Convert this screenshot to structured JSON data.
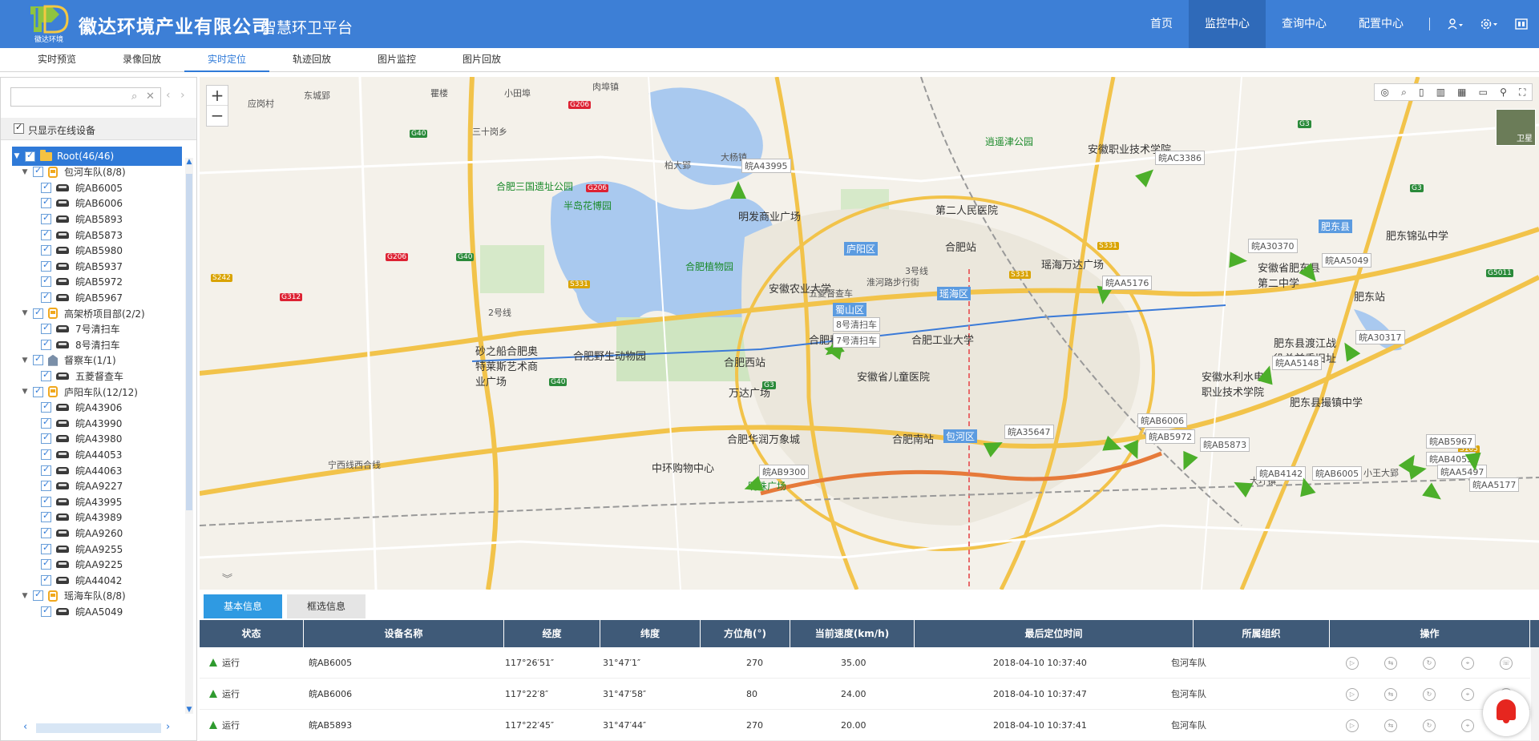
{
  "header": {
    "logo_caption": "徽达环境",
    "company": "徽达环境产业有限公司",
    "platform": "智慧环卫平台",
    "nav": [
      {
        "label": "首页",
        "active": false
      },
      {
        "label": "监控中心",
        "active": true
      },
      {
        "label": "查询中心",
        "active": false
      },
      {
        "label": "配置中心",
        "active": false
      }
    ],
    "icons": [
      "user-icon",
      "gear-icon",
      "window-icon"
    ]
  },
  "subtabs": [
    "实时预览",
    "录像回放",
    "实时定位",
    "轨迹回放",
    "图片监控",
    "图片回放"
  ],
  "subtab_active": "实时定位",
  "sidebar": {
    "search": {
      "value": "",
      "placeholder": ""
    },
    "online_only_label": "只显示在线设备",
    "tree": [
      {
        "type": "root",
        "label": "Root(46/46)"
      },
      {
        "type": "group",
        "icon": "bus",
        "label": "包河车队(8/8)"
      },
      {
        "type": "device",
        "label": "皖AB6005"
      },
      {
        "type": "device",
        "label": "皖AB6006"
      },
      {
        "type": "device",
        "label": "皖AB5893"
      },
      {
        "type": "device",
        "label": "皖AB5873"
      },
      {
        "type": "device",
        "label": "皖AB5980"
      },
      {
        "type": "device",
        "label": "皖AB5937"
      },
      {
        "type": "device",
        "label": "皖AB5972"
      },
      {
        "type": "device",
        "label": "皖AB5967"
      },
      {
        "type": "group",
        "icon": "bus",
        "label": "高架桥项目部(2/2)"
      },
      {
        "type": "device",
        "label": "7号清扫车"
      },
      {
        "type": "device",
        "label": "8号清扫车"
      },
      {
        "type": "group",
        "icon": "building",
        "label": "督察车(1/1)"
      },
      {
        "type": "device",
        "label": "五菱督查车"
      },
      {
        "type": "group",
        "icon": "bus",
        "label": "庐阳车队(12/12)"
      },
      {
        "type": "device",
        "label": "皖A43906"
      },
      {
        "type": "device",
        "label": "皖A43990"
      },
      {
        "type": "device",
        "label": "皖A43980"
      },
      {
        "type": "device",
        "label": "皖A44053"
      },
      {
        "type": "device",
        "label": "皖A44063"
      },
      {
        "type": "device",
        "label": "皖AA9227"
      },
      {
        "type": "device",
        "label": "皖A43995"
      },
      {
        "type": "device",
        "label": "皖A43989"
      },
      {
        "type": "device",
        "label": "皖AA9260"
      },
      {
        "type": "device",
        "label": "皖AA9255"
      },
      {
        "type": "device",
        "label": "皖AA9225"
      },
      {
        "type": "device",
        "label": "皖A44042"
      },
      {
        "type": "group",
        "icon": "bus",
        "label": "瑶海车队(8/8)"
      },
      {
        "type": "device",
        "label": "皖AA5049"
      }
    ]
  },
  "map": {
    "zoom_in": "+",
    "zoom_out": "−",
    "minimap_label": "卫星",
    "labels": [
      {
        "text": "应岗村",
        "cls": ""
      },
      {
        "text": "东城郢",
        "cls": ""
      },
      {
        "text": "瞿楼",
        "cls": ""
      },
      {
        "text": "小田埠",
        "cls": ""
      },
      {
        "text": "肉埠镇",
        "cls": ""
      },
      {
        "text": "合肥三国遗址公园",
        "cls": "green"
      },
      {
        "text": "半岛花博园",
        "cls": "green"
      },
      {
        "text": "明发商业广场",
        "cls": "big"
      },
      {
        "text": "第二人民医院",
        "cls": "big"
      },
      {
        "text": "逍遥津公园",
        "cls": "green"
      },
      {
        "text": "安徽职业技术学院",
        "cls": "big"
      },
      {
        "text": "合肥植物园",
        "cls": "green"
      },
      {
        "text": "庐阳区",
        "cls": "dist"
      },
      {
        "text": "合肥站",
        "cls": "big"
      },
      {
        "text": "瑶海万达广场",
        "cls": "big"
      },
      {
        "text": "安徽农业大学",
        "cls": "big"
      },
      {
        "text": "淮河路步行街",
        "cls": ""
      },
      {
        "text": "五菱督查车",
        "cls": ""
      },
      {
        "text": "蜀山区",
        "cls": "dist"
      },
      {
        "text": "瑶海区",
        "cls": "dist"
      },
      {
        "text": "合肥科技馆",
        "cls": "big"
      },
      {
        "text": "合肥工业大学",
        "cls": "big"
      },
      {
        "text": "砂之船合肥奥特莱斯艺术商业广场",
        "cls": "big"
      },
      {
        "text": "合肥野生动物园",
        "cls": "big"
      },
      {
        "text": "合肥西站",
        "cls": "big"
      },
      {
        "text": "安徽省儿童医院",
        "cls": "big"
      },
      {
        "text": "万达广场",
        "cls": "big"
      },
      {
        "text": "合肥华润万象城",
        "cls": "big"
      },
      {
        "text": "合肥南站",
        "cls": "big"
      },
      {
        "text": "包河区",
        "cls": "dist"
      },
      {
        "text": "中环购物中心",
        "cls": "big"
      },
      {
        "text": "明珠广场",
        "cls": "green"
      },
      {
        "text": "肥东县",
        "cls": "dist"
      },
      {
        "text": "肥东锦弘中学",
        "cls": "big"
      },
      {
        "text": "安徽省肥东县第二中学",
        "cls": "big"
      },
      {
        "text": "肥东站",
        "cls": "big"
      },
      {
        "text": "肥东县渡江战役总前委旧址",
        "cls": "big"
      },
      {
        "text": "安徽水利水电职业技术学院",
        "cls": "big"
      },
      {
        "text": "肥东县撮镇中学",
        "cls": "big"
      },
      {
        "text": "大圩镇",
        "cls": ""
      },
      {
        "text": "宁西线西合线",
        "cls": ""
      },
      {
        "text": "2号线",
        "cls": ""
      },
      {
        "text": "3号线",
        "cls": ""
      },
      {
        "text": "三十岗乡",
        "cls": ""
      },
      {
        "text": "大杨镇",
        "cls": ""
      },
      {
        "text": "柏大郢",
        "cls": ""
      },
      {
        "text": "小王大郢",
        "cls": ""
      }
    ],
    "vehicles": [
      "皖A43995",
      "皖AC3386",
      "皖A30370",
      "皖AA5049",
      "皖AA5176",
      "8号清扫车",
      "7号清扫车",
      "皖A30317",
      "皖AA5148",
      "皖A35647",
      "皖AB6006",
      "皖AB5972",
      "皖AB5873",
      "皖AB9300",
      "皖AB4142",
      "皖AB6005",
      "皖AB5967",
      "皖AB4053",
      "皖AA5497",
      "皖AA5177"
    ],
    "roads": [
      "G206",
      "G206",
      "G206",
      "G40",
      "G40",
      "G40",
      "G312",
      "S242",
      "S331",
      "S331",
      "S331",
      "G3",
      "G3",
      "G3",
      "S105",
      "G5011"
    ]
  },
  "info": {
    "tabs": [
      "基本信息",
      "框选信息"
    ],
    "columns": [
      "状态",
      "设备名称",
      "经度",
      "纬度",
      "方位角(°)",
      "当前速度(km/h)",
      "最后定位时间",
      "所属组织",
      "操作"
    ],
    "rows": [
      {
        "status": "运行",
        "name": "皖AB6005",
        "lng": "117°26′51″",
        "lat": "31°47′1″",
        "heading": "270",
        "speed": "35.00",
        "time": "2018-04-10 10:37:40",
        "org": "包河车队"
      },
      {
        "status": "运行",
        "name": "皖AB6006",
        "lng": "117°22′8″",
        "lat": "31°47′58″",
        "heading": "80",
        "speed": "24.00",
        "time": "2018-04-10 10:37:47",
        "org": "包河车队"
      },
      {
        "status": "运行",
        "name": "皖AB5893",
        "lng": "117°22′45″",
        "lat": "31°47′44″",
        "heading": "270",
        "speed": "20.00",
        "time": "2018-04-10 10:37:41",
        "org": "包河车队"
      }
    ],
    "op_icons": [
      "play-icon",
      "swap-icon",
      "track-icon",
      "location-icon",
      "phone-icon"
    ]
  }
}
